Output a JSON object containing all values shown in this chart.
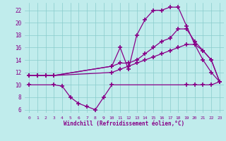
{
  "background_color": "#c0ecec",
  "grid_color": "#88cccc",
  "line_color": "#880088",
  "xlabel": "Windchill (Refroidissement éolien,°C)",
  "xlim": [
    -0.5,
    23.5
  ],
  "ylim": [
    5.5,
    23.2
  ],
  "yticks": [
    6,
    8,
    10,
    12,
    14,
    16,
    18,
    20,
    22
  ],
  "xticks": [
    0,
    1,
    2,
    3,
    4,
    5,
    6,
    7,
    8,
    9,
    10,
    11,
    12,
    13,
    14,
    15,
    16,
    17,
    18,
    19,
    20,
    21,
    22,
    23
  ],
  "line1_x": [
    0,
    1,
    2,
    3,
    10,
    11,
    12,
    13,
    14,
    15,
    16,
    17,
    18,
    19,
    20,
    21,
    22,
    23
  ],
  "line1_y": [
    11.5,
    11.5,
    11.5,
    11.5,
    13.0,
    16.0,
    12.5,
    18.0,
    20.5,
    22.0,
    22.0,
    22.5,
    22.5,
    19.5,
    16.5,
    14.0,
    12.0,
    10.5
  ],
  "line2_x": [
    0,
    1,
    2,
    3,
    10,
    11,
    12,
    13,
    14,
    15,
    16,
    17,
    18,
    19,
    20,
    21,
    22,
    23
  ],
  "line2_y": [
    11.5,
    11.5,
    11.5,
    11.5,
    13.0,
    13.5,
    13.5,
    14.0,
    15.0,
    16.0,
    17.0,
    17.5,
    19.0,
    19.0,
    17.0,
    15.5,
    14.0,
    10.5
  ],
  "line3_x": [
    0,
    1,
    2,
    3,
    10,
    11,
    12,
    13,
    14,
    15,
    16,
    17,
    18,
    19,
    20,
    21,
    22,
    23
  ],
  "line3_y": [
    11.5,
    11.5,
    11.5,
    11.5,
    12.0,
    12.5,
    13.0,
    13.5,
    14.0,
    14.5,
    15.0,
    15.5,
    16.0,
    16.5,
    16.5,
    15.5,
    14.0,
    10.5
  ],
  "line4_x": [
    0,
    3,
    4,
    5,
    6,
    7,
    8,
    9,
    10,
    19,
    20,
    21,
    22,
    23
  ],
  "line4_y": [
    10.0,
    10.0,
    9.8,
    8.0,
    7.0,
    6.5,
    6.0,
    8.0,
    10.0,
    10.0,
    10.0,
    10.0,
    10.0,
    10.5
  ]
}
